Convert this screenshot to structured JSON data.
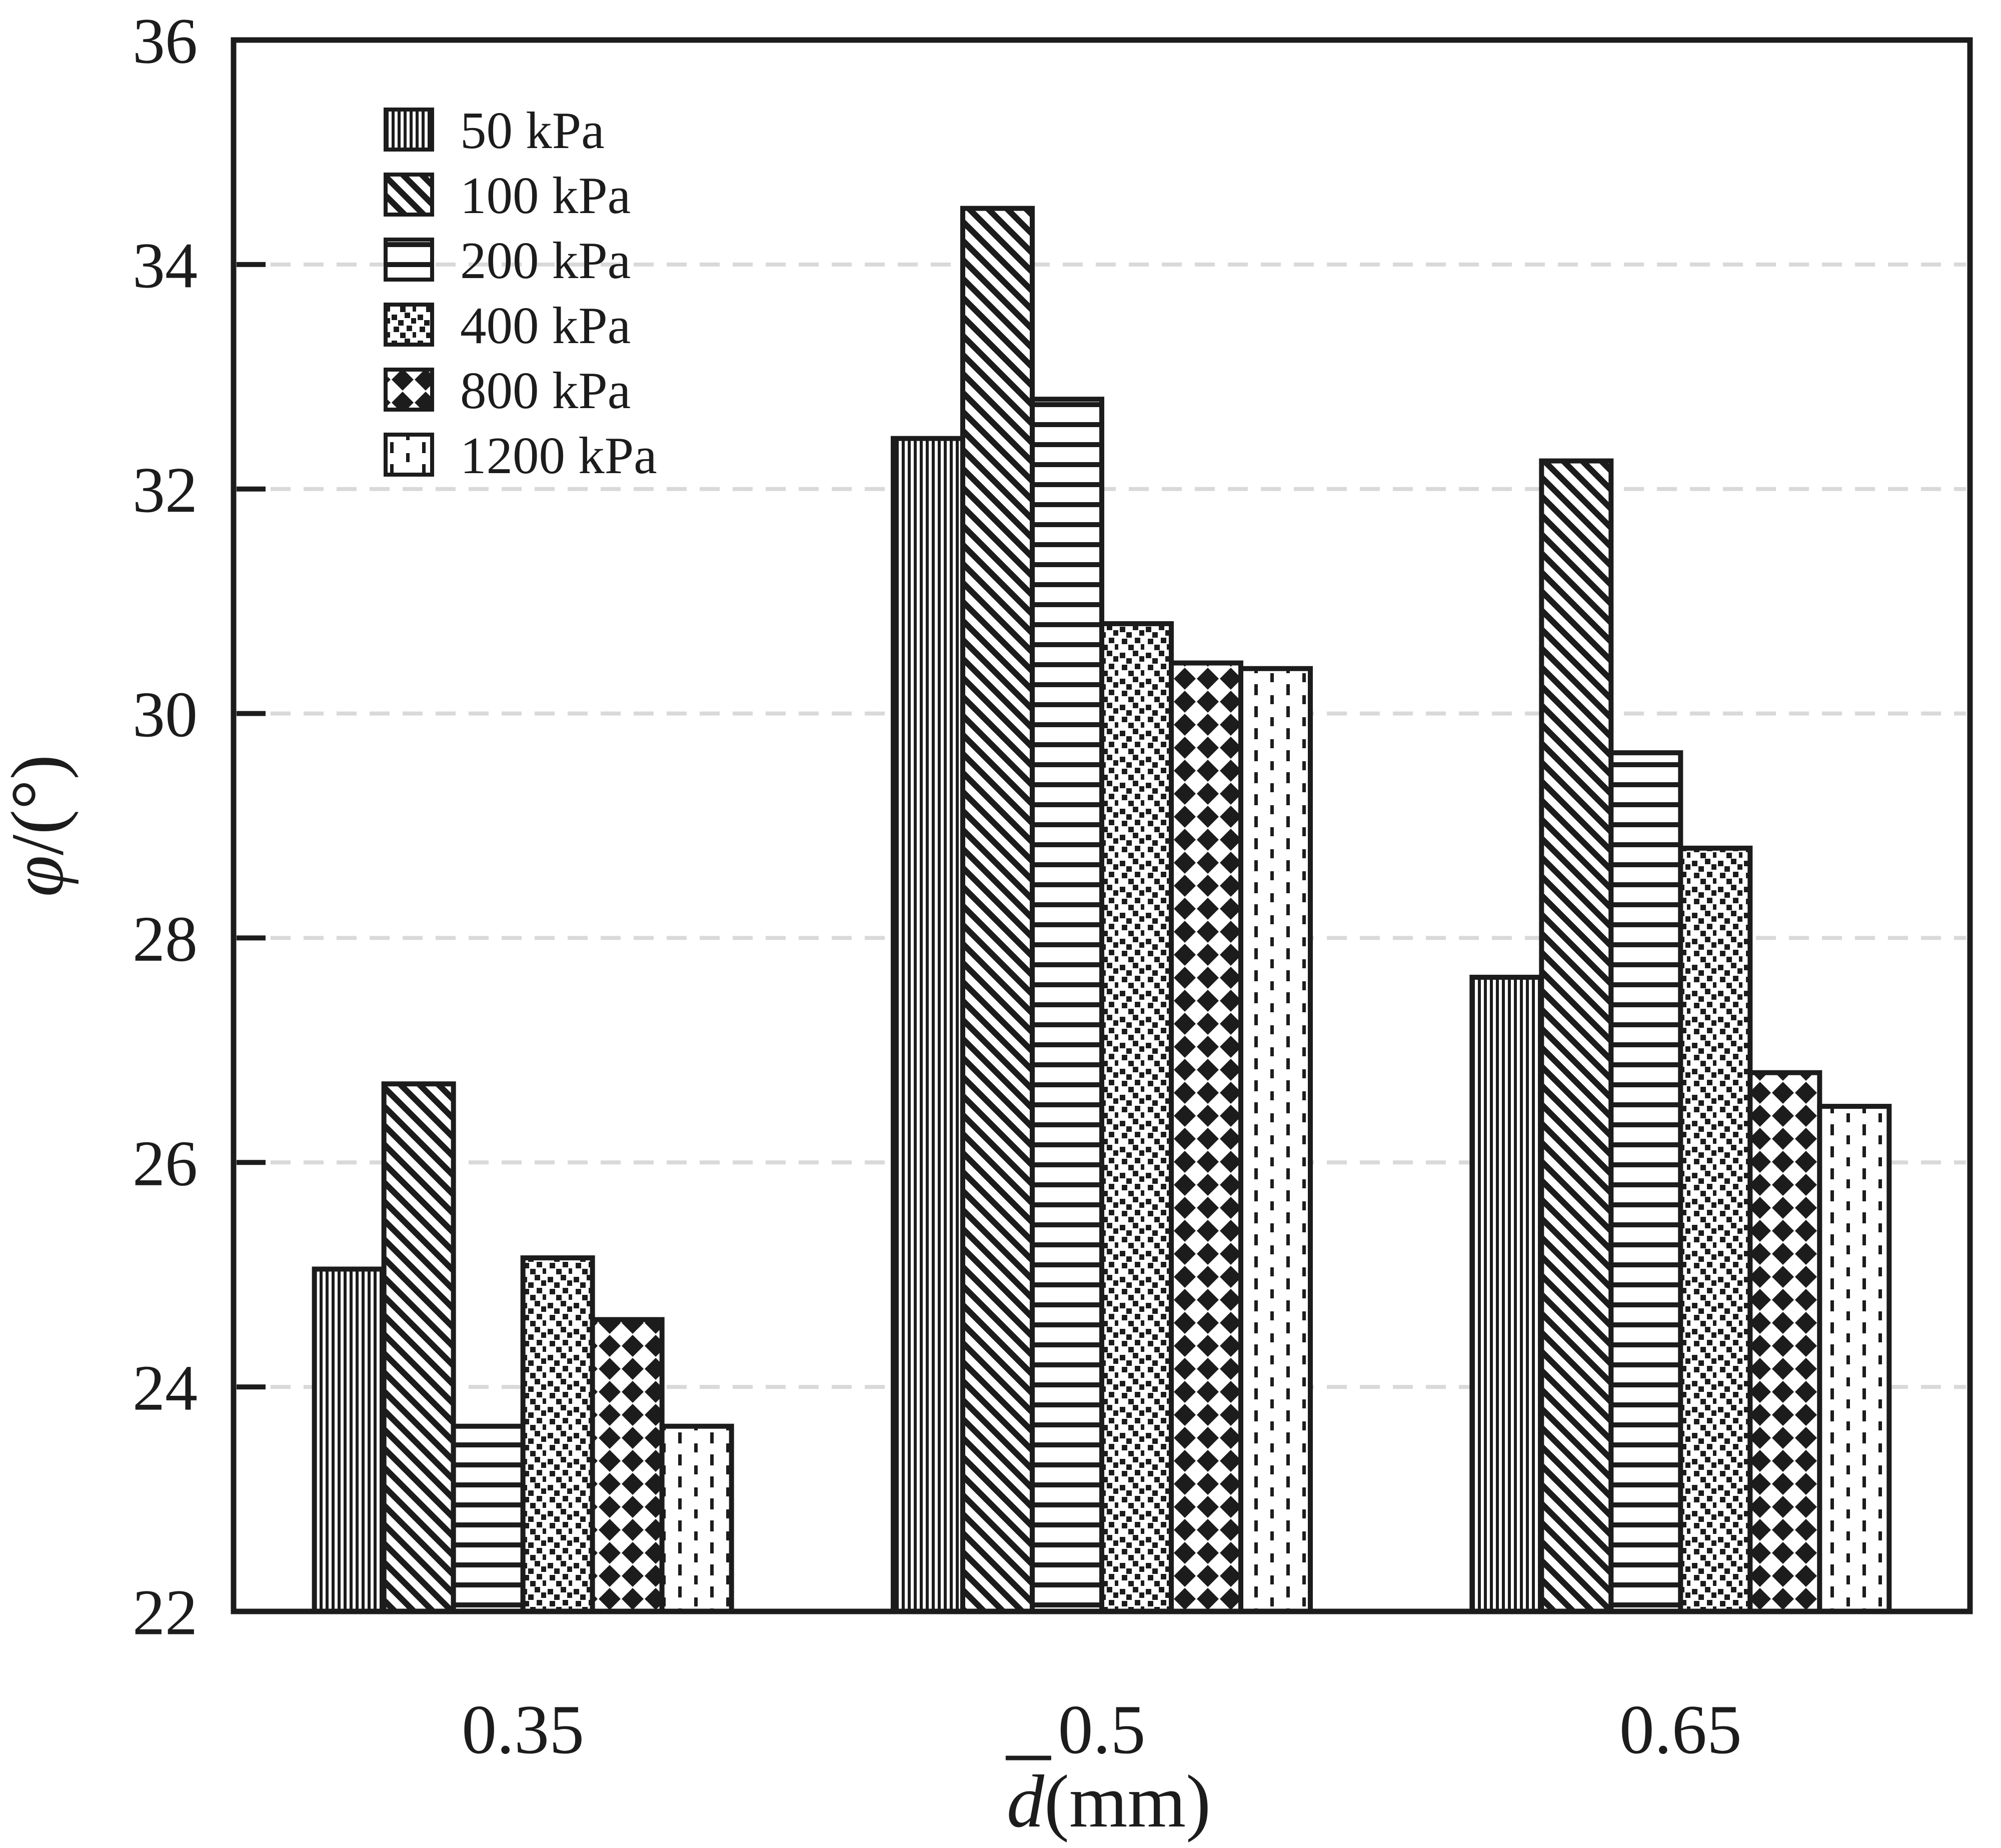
{
  "figure": {
    "kind": "grouped-bar-chart",
    "background": "#ffffff"
  },
  "chart_data": {
    "type": "bar",
    "title": "",
    "categories": [
      "0.35",
      "0.5",
      "0.65"
    ],
    "series": [
      {
        "name": "50 kPa",
        "pattern": "vertical-lines",
        "values": [
          25.05,
          32.45,
          27.65
        ]
      },
      {
        "name": "100 kPa",
        "pattern": "diagonal-lines",
        "values": [
          26.7,
          34.5,
          32.25
        ]
      },
      {
        "name": "200 kPa",
        "pattern": "horizontal-lines",
        "values": [
          23.65,
          32.8,
          29.65
        ]
      },
      {
        "name": "400 kPa",
        "pattern": "dots",
        "values": [
          25.15,
          30.8,
          28.8
        ]
      },
      {
        "name": "800 kPa",
        "pattern": "diamonds",
        "values": [
          24.6,
          30.45,
          26.8
        ]
      },
      {
        "name": "1200 kPa",
        "pattern": "vertical-dashes",
        "values": [
          23.65,
          30.4,
          26.5
        ]
      }
    ],
    "legend_labels": [
      "50 kPa",
      "100 kPa",
      "200 kPa",
      "400 kPa",
      "800 kPa",
      "1200 kPa"
    ],
    "legend_position": "top-left-inside",
    "xlabel": {
      "symbol": "d",
      "symbol_overline": true,
      "unit": "(mm)"
    },
    "ylabel": {
      "symbol": "φ",
      "unit": "/(°)"
    },
    "ylim": [
      22,
      36
    ],
    "yticks": [
      22,
      24,
      26,
      28,
      30,
      32,
      34,
      36
    ],
    "ytick_labels": [
      "22",
      "24",
      "26",
      "28",
      "30",
      "32",
      "34",
      "36"
    ],
    "xtick_labels": [
      "0.35",
      "0.5",
      "0.65"
    ],
    "grid_values": [
      24,
      26,
      28,
      30,
      32,
      34
    ],
    "grid_style": "horizontal-dashed",
    "ink_color": "#1c1c1c",
    "grid_color": "#d9d9d9",
    "plot_background": "#ffffff"
  }
}
